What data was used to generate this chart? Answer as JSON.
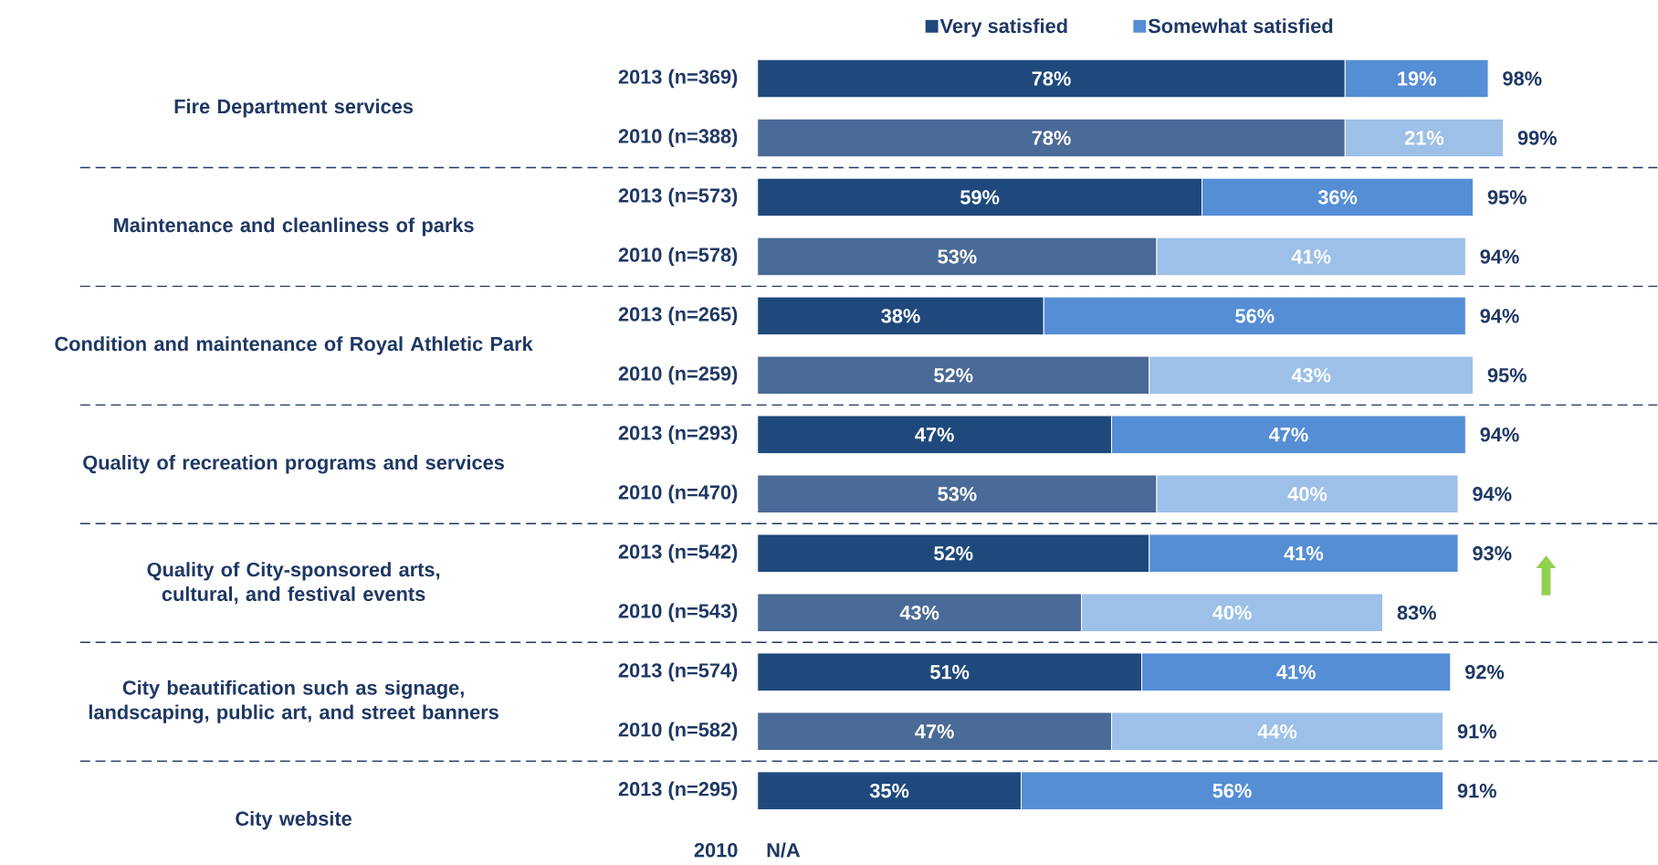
{
  "chart_data": {
    "type": "bar",
    "orientation": "horizontal",
    "stacked": true,
    "legend": "top",
    "tick_labels": "y",
    "categories": [
      "2013 (n=369)",
      "2010 (n=388)",
      "2013 (n=573)",
      "2010 (n=578)",
      "2013 (n=265)",
      "2010 (n=259)",
      "2013 (n=293)",
      "2010 (n=470)",
      "2013 (n=542)",
      "2010 (n=543)",
      "2013 (n=574)",
      "2010 (n=582)",
      "2013 (n=295)",
      "2010"
    ],
    "series": [
      {
        "name": "Very satisfied",
        "color": "#1f497d",
        "colors": [
          "#1f497d",
          "#4a6a97",
          "#1f497d",
          "#4a6a97",
          "#1f497d",
          "#4a6a97",
          "#1f497d",
          "#4a6a97",
          "#1f497d",
          "#4a6a97",
          "#1f497d",
          "#4a6a97",
          "#1f497d",
          "#4a6a97"
        ],
        "values": [
          78,
          78,
          59,
          53,
          38,
          52,
          47,
          53,
          52,
          43,
          51,
          47,
          35,
          null
        ],
        "value_labels": [
          "78%",
          "78%",
          "59%",
          "53%",
          "38%",
          "52%",
          "47%",
          "53%",
          "52%",
          "43%",
          "51%",
          "47%",
          "35%",
          null
        ]
      },
      {
        "name": "Somewhat satisfied",
        "color": "#558ed5",
        "colors": [
          "#558ed5",
          "#9dc0e8",
          "#558ed5",
          "#9dc0e8",
          "#558ed5",
          "#9dc0e8",
          "#558ed5",
          "#9dc0e8",
          "#558ed5",
          "#9dc0e8",
          "#558ed5",
          "#9dc0e8",
          "#558ed5",
          "#9dc0e8"
        ],
        "values": [
          19,
          21,
          36,
          41,
          56,
          43,
          47,
          40,
          41,
          40,
          41,
          44,
          56,
          null
        ],
        "value_labels": [
          "19%",
          "21%",
          "36%",
          "41%",
          "56%",
          "43%",
          "47%",
          "40%",
          "41%",
          "40%",
          "41%",
          "44%",
          "56%",
          null
        ]
      }
    ],
    "totals": [
      "98%",
      "99%",
      "95%",
      "94%",
      "94%",
      "95%",
      "94%",
      "94%",
      "93%",
      "83%",
      "92%",
      "91%",
      "91%",
      null
    ],
    "annotations": [
      "Fire Department services",
      "Maintenance and cleanliness of parks",
      "Condition and maintenance of Royal Athletic Park",
      "Quality of recreation programs and services",
      "Quality of City-sponsored arts, cultural, and festival events",
      "City beautification such as signage, landscaping, public art, and street banners",
      "City website",
      "N/A"
    ]
  }
}
